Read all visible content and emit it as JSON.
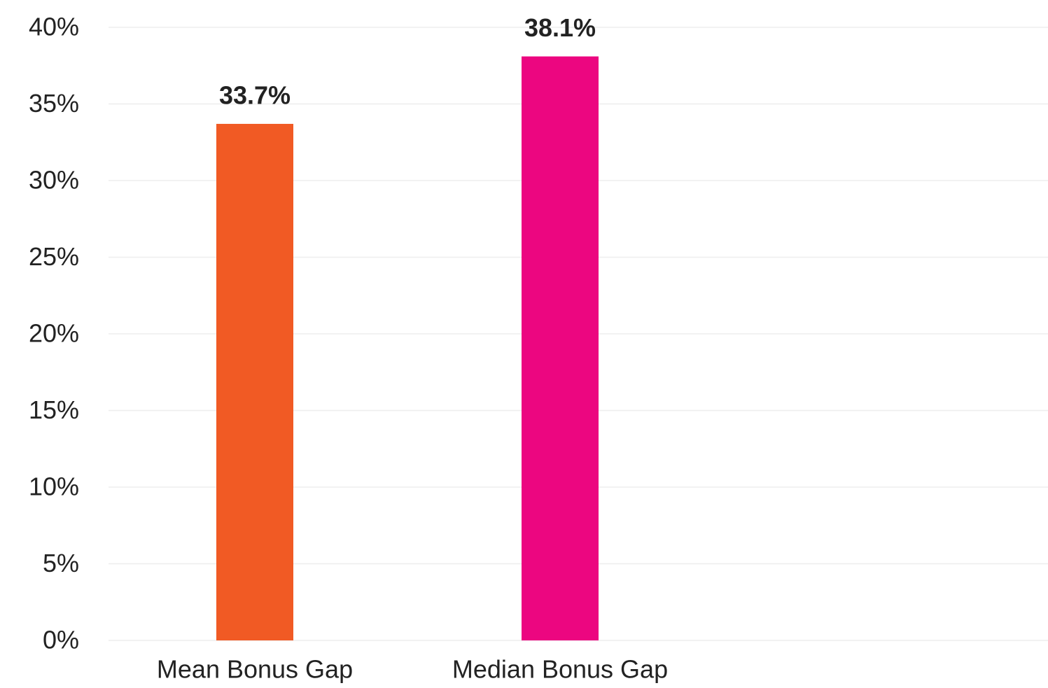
{
  "chart_data": {
    "type": "bar",
    "categories": [
      "Mean Bonus Gap",
      "Median Bonus Gap"
    ],
    "values": [
      33.7,
      38.1
    ],
    "value_labels": [
      "33.7%",
      "38.1%"
    ],
    "colors": [
      "#f15a24",
      "#ec0680"
    ],
    "ylim": [
      0,
      40
    ],
    "yticks": [
      {
        "value": 0,
        "label": "0%"
      },
      {
        "value": 5,
        "label": "5%"
      },
      {
        "value": 10,
        "label": "10%"
      },
      {
        "value": 15,
        "label": "15%"
      },
      {
        "value": 20,
        "label": "20%"
      },
      {
        "value": 25,
        "label": "25%"
      },
      {
        "value": 30,
        "label": "30%"
      },
      {
        "value": 35,
        "label": "35%"
      },
      {
        "value": 40,
        "label": "40%"
      }
    ],
    "grid": true
  }
}
